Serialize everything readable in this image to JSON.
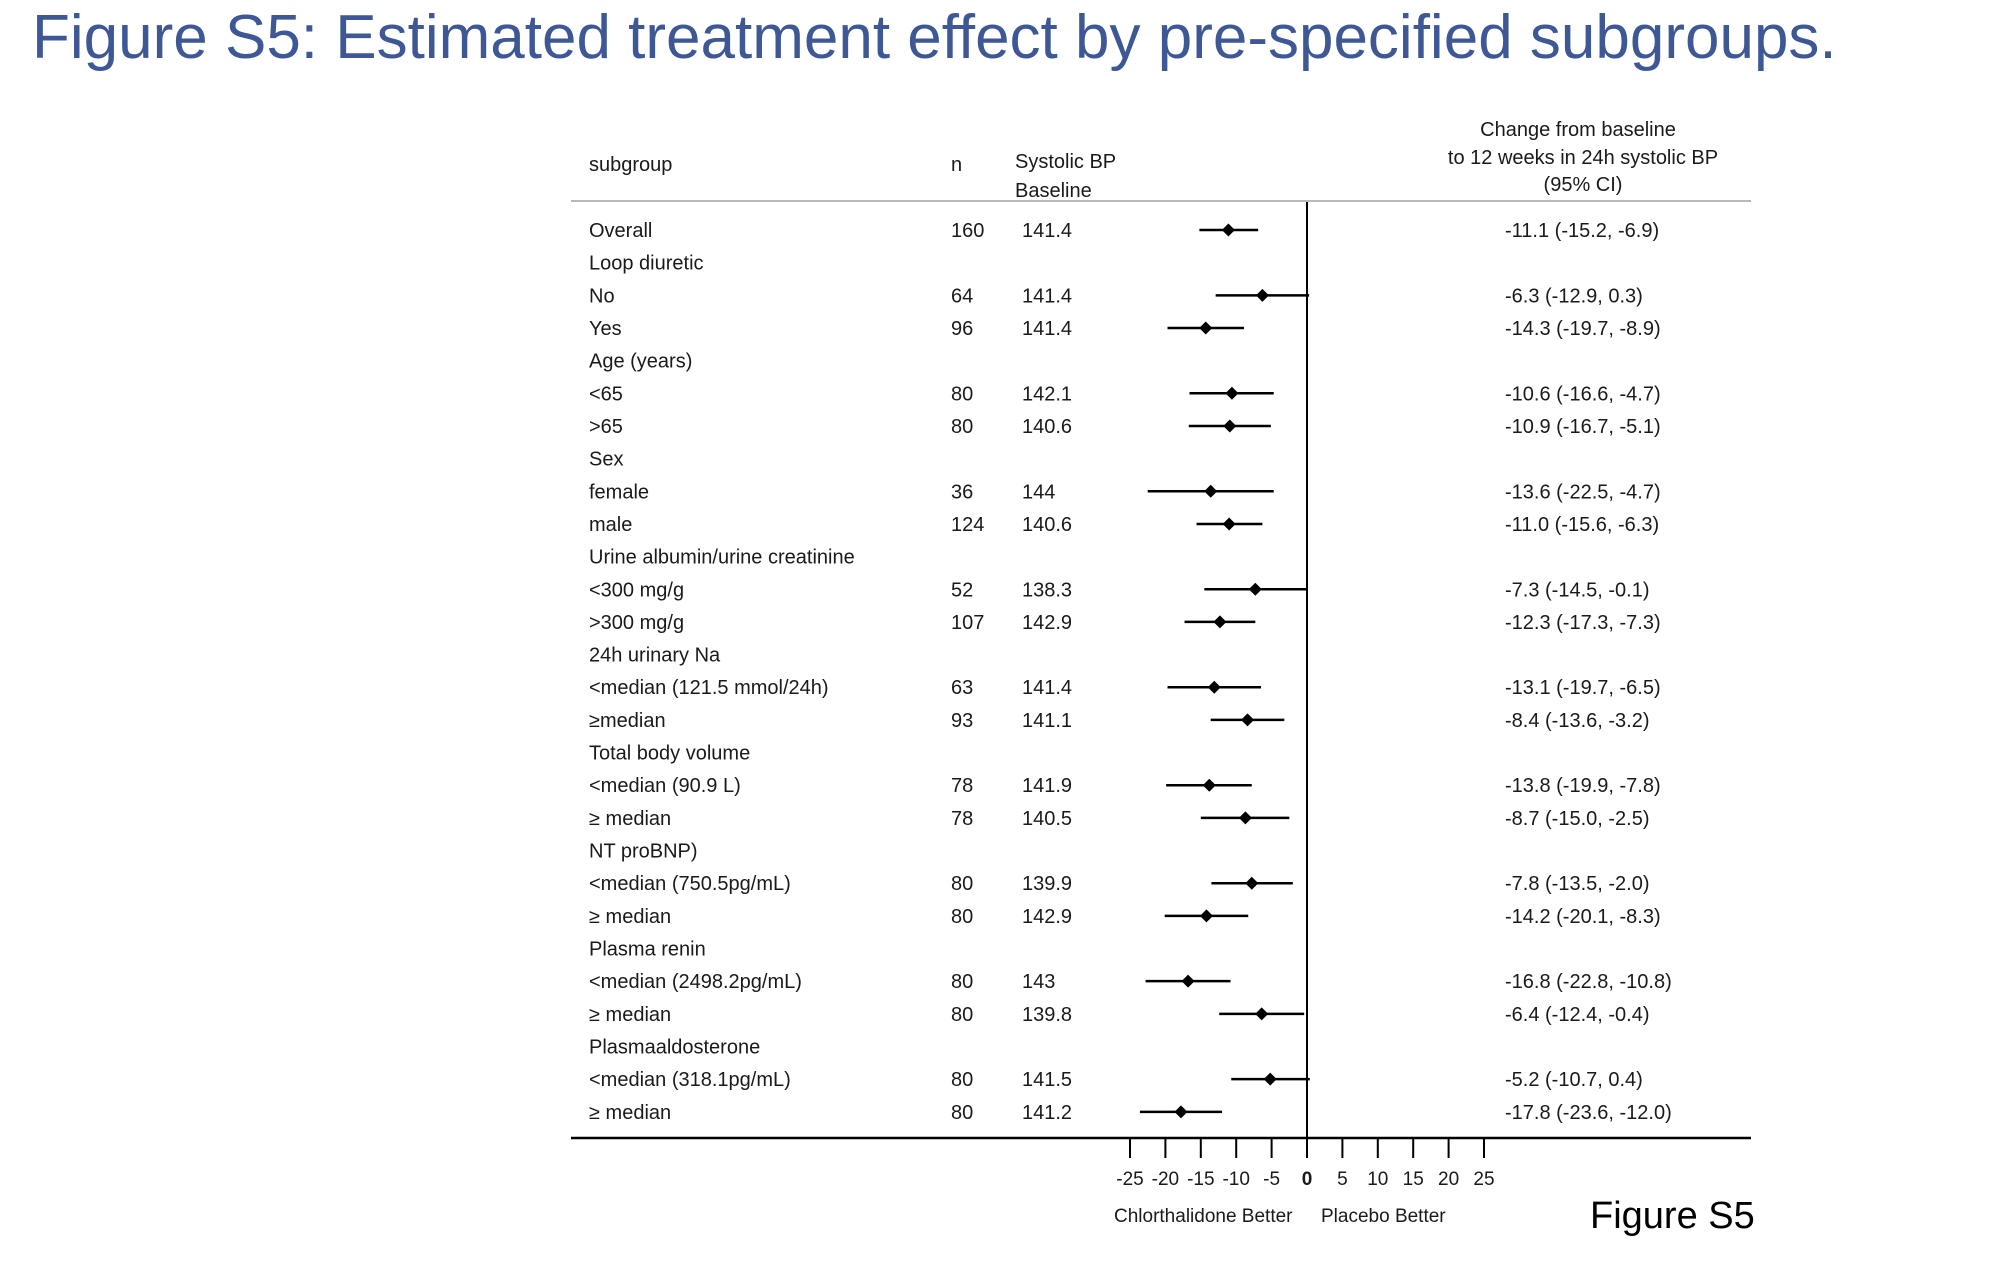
{
  "page_title": "Figure S5: Estimated treatment effect by pre-specified subgroups.",
  "figure_tag": "Figure S5",
  "chart_data": {
    "type": "forest",
    "headers": {
      "subgroup": "subgroup",
      "n": "n",
      "baseline_line1": "Systolic BP",
      "baseline_line2": "Baseline",
      "effect_line1": "Change from baseline",
      "effect_line2": "to 12 weeks in 24h systolic BP",
      "effect_line3": "(95% CI)"
    },
    "rows": [
      {
        "label": "Overall",
        "n": "160",
        "baseline": "141.4",
        "est": -11.1,
        "lo": -15.2,
        "hi": -6.9,
        "ci_text": "-11.1 (-15.2, -6.9)"
      },
      {
        "label": "Loop diuretic"
      },
      {
        "label": "No",
        "n": "64",
        "baseline": "141.4",
        "est": -6.3,
        "lo": -12.9,
        "hi": 0.3,
        "ci_text": "-6.3 (-12.9, 0.3)"
      },
      {
        "label": "Yes",
        "n": "96",
        "baseline": "141.4",
        "est": -14.3,
        "lo": -19.7,
        "hi": -8.9,
        "ci_text": "-14.3 (-19.7, -8.9)"
      },
      {
        "label": "Age (years)"
      },
      {
        "label": "<65",
        "n": "80",
        "baseline": "142.1",
        "est": -10.6,
        "lo": -16.6,
        "hi": -4.7,
        "ci_text": "-10.6 (-16.6, -4.7)"
      },
      {
        "label": ">65",
        "n": "80",
        "baseline": "140.6",
        "est": -10.9,
        "lo": -16.7,
        "hi": -5.1,
        "ci_text": "-10.9 (-16.7, -5.1)"
      },
      {
        "label": "Sex"
      },
      {
        "label": "female",
        "n": "36",
        "baseline": "144",
        "est": -13.6,
        "lo": -22.5,
        "hi": -4.7,
        "ci_text": "-13.6 (-22.5, -4.7)"
      },
      {
        "label": "male",
        "n": "124",
        "baseline": "140.6",
        "est": -11.0,
        "lo": -15.6,
        "hi": -6.3,
        "ci_text": "-11.0 (-15.6, -6.3)"
      },
      {
        "label": "Urine albumin/urine creatinine"
      },
      {
        "label": "<300 mg/g",
        "n": "52",
        "baseline": "138.3",
        "est": -7.3,
        "lo": -14.5,
        "hi": -0.1,
        "ci_text": "-7.3 (-14.5, -0.1)"
      },
      {
        "label": ">300 mg/g",
        "n": "107",
        "baseline": "142.9",
        "est": -12.3,
        "lo": -17.3,
        "hi": -7.3,
        "ci_text": "-12.3 (-17.3, -7.3)"
      },
      {
        "label": "24h urinary Na"
      },
      {
        "label": "<median (121.5 mmol/24h)",
        "n": "63",
        "baseline": "141.4",
        "est": -13.1,
        "lo": -19.7,
        "hi": -6.5,
        "ci_text": "-13.1 (-19.7, -6.5)"
      },
      {
        "label": "≥median",
        "n": "93",
        "baseline": "141.1",
        "est": -8.4,
        "lo": -13.6,
        "hi": -3.2,
        "ci_text": "-8.4 (-13.6, -3.2)"
      },
      {
        "label": "Total body volume"
      },
      {
        "label": "<median (90.9 L)",
        "n": "78",
        "baseline": "141.9",
        "est": -13.8,
        "lo": -19.9,
        "hi": -7.8,
        "ci_text": "-13.8 (-19.9, -7.8)"
      },
      {
        "label": "≥ median",
        "n": "78",
        "baseline": "140.5",
        "est": -8.7,
        "lo": -15.0,
        "hi": -2.5,
        "ci_text": "-8.7 (-15.0, -2.5)"
      },
      {
        "label": "NT proBNP)"
      },
      {
        "label": "<median (750.5pg/mL)",
        "n": "80",
        "baseline": "139.9",
        "est": -7.8,
        "lo": -13.5,
        "hi": -2.0,
        "ci_text": "-7.8 (-13.5, -2.0)"
      },
      {
        "label": "≥ median",
        "n": "80",
        "baseline": "142.9",
        "est": -14.2,
        "lo": -20.1,
        "hi": -8.3,
        "ci_text": "-14.2 (-20.1, -8.3)"
      },
      {
        "label": "Plasma renin"
      },
      {
        "label": "<median (2498.2pg/mL)",
        "n": "80",
        "baseline": "143",
        "est": -16.8,
        "lo": -22.8,
        "hi": -10.8,
        "ci_text": "-16.8 (-22.8, -10.8)"
      },
      {
        "label": "≥ median",
        "n": "80",
        "baseline": "139.8",
        "est": -6.4,
        "lo": -12.4,
        "hi": -0.4,
        "ci_text": "-6.4 (-12.4, -0.4)"
      },
      {
        "label": "Plasmaaldosterone"
      },
      {
        "label": "<median (318.1pg/mL)",
        "n": "80",
        "baseline": "141.5",
        "est": -5.2,
        "lo": -10.7,
        "hi": 0.4,
        "ci_text": "-5.2 (-10.7, 0.4)"
      },
      {
        "label": "≥ median",
        "n": "80",
        "baseline": "141.2",
        "est": -17.8,
        "lo": -23.6,
        "hi": -12.0,
        "ci_text": "-17.8 (-23.6, -12.0)"
      }
    ],
    "xaxis": {
      "ticks": [
        -25,
        -20,
        -15,
        -10,
        -5,
        0,
        5,
        10,
        15,
        20,
        25
      ],
      "tick_labels": [
        "-25",
        "-20",
        "-15",
        "-10",
        "-5",
        "0",
        "5",
        "10",
        "15",
        "20",
        "25"
      ],
      "range": [
        -25,
        25
      ],
      "reference_line": 0,
      "label_left": "Chlorthalidone Better",
      "label_right": "Placebo Better"
    },
    "grid": false
  }
}
